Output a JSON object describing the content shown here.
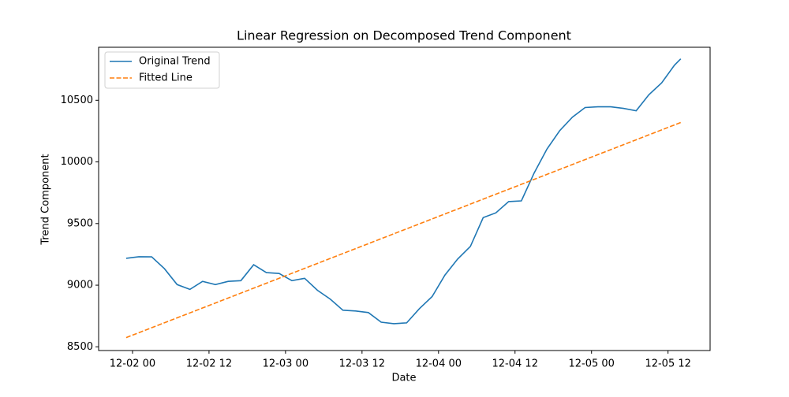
{
  "chart_data": {
    "type": "line",
    "title": "Linear Regression on Decomposed Trend Component",
    "x_label": "Date",
    "y_label": "Trend Component",
    "legend": "upper left",
    "xlim": [
      "12-01 18:41",
      "12-05 18:36"
    ],
    "ylim": [
      8470,
      10930
    ],
    "xticks": [
      {
        "value": "12-02 00:00",
        "label": "12-02 00"
      },
      {
        "value": "12-02 12:00",
        "label": "12-02 12"
      },
      {
        "value": "12-03 00:00",
        "label": "12-03 00"
      },
      {
        "value": "12-03 12:00",
        "label": "12-03 12"
      },
      {
        "value": "12-04 00:00",
        "label": "12-04 00"
      },
      {
        "value": "12-04 12:00",
        "label": "12-04 12"
      },
      {
        "value": "12-05 00:00",
        "label": "12-05 00"
      },
      {
        "value": "12-05 12:00",
        "label": "12-05 12"
      }
    ],
    "yticks": [
      8500,
      9000,
      9500,
      10000,
      10500
    ],
    "series": [
      {
        "name": "Original Trend",
        "color": "#1f77b4",
        "dash": "solid",
        "x": [
          "12-01 23:00",
          "12-02 01:00",
          "12-02 03:00",
          "12-02 05:00",
          "12-02 07:00",
          "12-02 09:00",
          "12-02 11:00",
          "12-02 13:00",
          "12-02 15:00",
          "12-02 17:00",
          "12-02 19:00",
          "12-02 21:00",
          "12-02 23:00",
          "12-03 01:00",
          "12-03 03:00",
          "12-03 05:00",
          "12-03 07:00",
          "12-03 09:00",
          "12-03 11:00",
          "12-03 13:00",
          "12-03 15:00",
          "12-03 17:00",
          "12-03 19:00",
          "12-03 21:00",
          "12-03 23:00",
          "12-04 01:00",
          "12-04 03:00",
          "12-04 05:00",
          "12-04 07:00",
          "12-04 09:00",
          "12-04 11:00",
          "12-04 13:00",
          "12-04 15:00",
          "12-04 17:00",
          "12-04 19:00",
          "12-04 21:00",
          "12-04 23:00",
          "12-05 01:00",
          "12-05 03:00",
          "12-05 05:00",
          "12-05 07:00",
          "12-05 09:00",
          "12-05 11:00",
          "12-05 13:00",
          "12-05 14:00"
        ],
        "values": [
          9218,
          9231,
          9230,
          9134,
          9005,
          8966,
          9031,
          9005,
          9031,
          9037,
          9166,
          9102,
          9095,
          9037,
          9056,
          8959,
          8888,
          8797,
          8791,
          8778,
          8700,
          8688,
          8694,
          8810,
          8908,
          9082,
          9212,
          9315,
          9548,
          9587,
          9678,
          9684,
          9910,
          10104,
          10253,
          10363,
          10441,
          10447,
          10447,
          10434,
          10415,
          10545,
          10641,
          10784,
          10836
        ]
      },
      {
        "name": "Fitted Line",
        "color": "#ff7f0e",
        "dash": "dashed",
        "x": [
          "12-01 23:00",
          "12-05 14:00"
        ],
        "values": [
          8575,
          10320
        ]
      }
    ]
  }
}
